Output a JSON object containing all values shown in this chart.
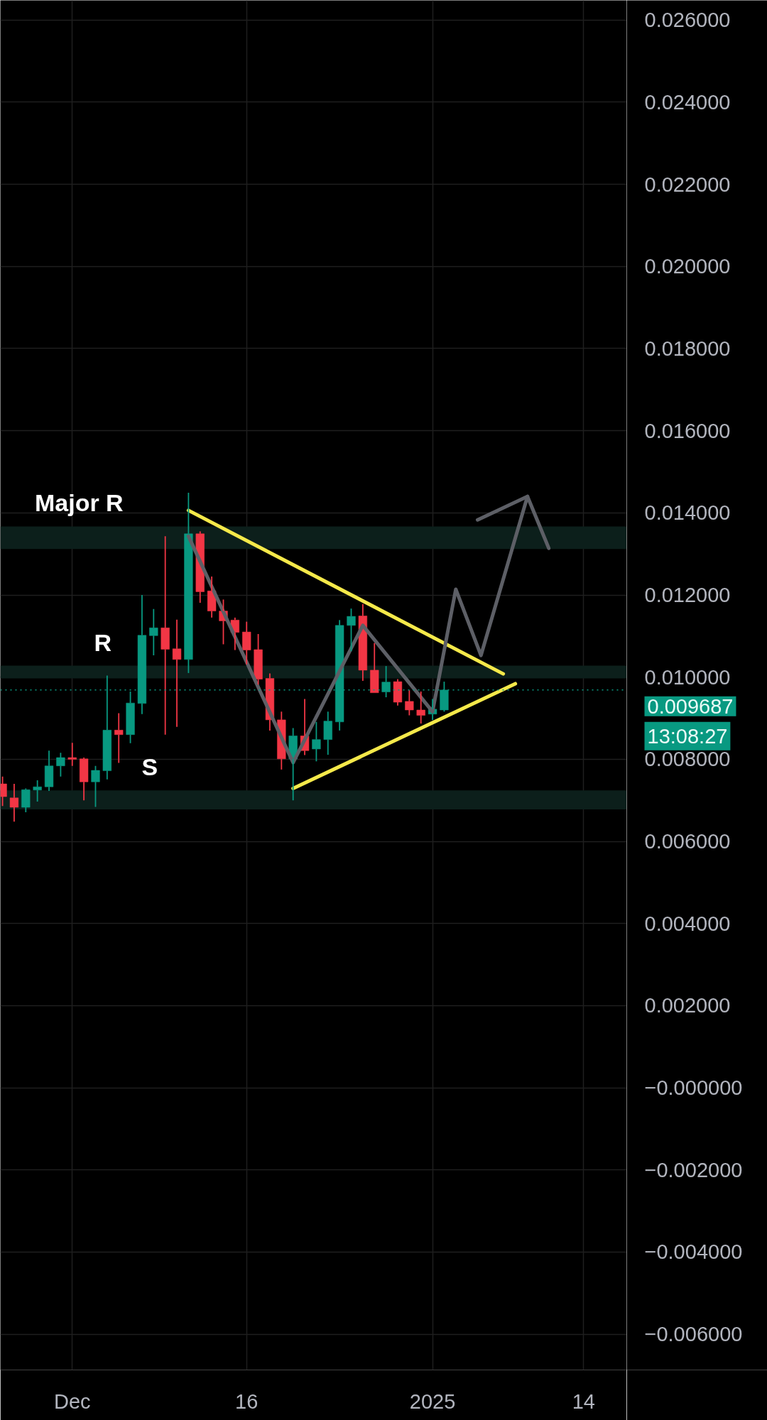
{
  "chart_data": {
    "type": "candlestick",
    "x": [
      "2024-11-25",
      "2024-11-26",
      "2024-11-27",
      "2024-11-28",
      "2024-11-29",
      "2024-11-30",
      "2024-12-01",
      "2024-12-02",
      "2024-12-03",
      "2024-12-04",
      "2024-12-05",
      "2024-12-06",
      "2024-12-07",
      "2024-12-08",
      "2024-12-09",
      "2024-12-10",
      "2024-12-11",
      "2024-12-12",
      "2024-12-13",
      "2024-12-14",
      "2024-12-15",
      "2024-12-16",
      "2024-12-17",
      "2024-12-18",
      "2024-12-19",
      "2024-12-20",
      "2024-12-21",
      "2024-12-22",
      "2024-12-23",
      "2024-12-24",
      "2024-12-25",
      "2024-12-26",
      "2024-12-27",
      "2024-12-28",
      "2024-12-29",
      "2024-12-30",
      "2024-12-31",
      "2025-01-01",
      "2025-01-02"
    ],
    "ohlc": [
      [
        0.0074,
        0.00758,
        0.00686,
        0.00709
      ],
      [
        0.00706,
        0.0074,
        0.00648,
        0.00683
      ],
      [
        0.00683,
        0.00729,
        0.00671,
        0.00726
      ],
      [
        0.00725,
        0.00749,
        0.00697,
        0.00733
      ],
      [
        0.00733,
        0.00821,
        0.00723,
        0.00784
      ],
      [
        0.00784,
        0.00816,
        0.00758,
        0.00804
      ],
      [
        0.00804,
        0.0084,
        0.00784,
        0.008
      ],
      [
        0.00801,
        0.00804,
        0.007,
        0.00745
      ],
      [
        0.00745,
        0.00784,
        0.00684,
        0.00773
      ],
      [
        0.00772,
        0.01004,
        0.00751,
        0.00871
      ],
      [
        0.00871,
        0.00912,
        0.00791,
        0.0086
      ],
      [
        0.0086,
        0.00965,
        0.00839,
        0.00937
      ],
      [
        0.00936,
        0.012,
        0.0091,
        0.01102
      ],
      [
        0.01101,
        0.01166,
        0.01053,
        0.0112
      ],
      [
        0.0112,
        0.01343,
        0.0086,
        0.01068
      ],
      [
        0.01069,
        0.0114,
        0.00879,
        0.01043
      ],
      [
        0.01043,
        0.01449,
        0.0101,
        0.01349
      ],
      [
        0.01349,
        0.01355,
        0.01181,
        0.01208
      ],
      [
        0.0121,
        0.01245,
        0.01145,
        0.01161
      ],
      [
        0.01161,
        0.01189,
        0.0108,
        0.01137
      ],
      [
        0.01139,
        0.01145,
        0.01066,
        0.01109
      ],
      [
        0.0111,
        0.01135,
        0.01031,
        0.01066
      ],
      [
        0.01067,
        0.01105,
        0.00982,
        0.00995
      ],
      [
        0.00997,
        0.01009,
        0.0087,
        0.00896
      ],
      [
        0.00896,
        0.00916,
        0.00775,
        0.00801
      ],
      [
        0.00801,
        0.00876,
        0.007,
        0.00857
      ],
      [
        0.00857,
        0.00947,
        0.0081,
        0.00821
      ],
      [
        0.00825,
        0.00891,
        0.00795,
        0.00848
      ],
      [
        0.00848,
        0.00916,
        0.00811,
        0.00893
      ],
      [
        0.00891,
        0.01139,
        0.0087,
        0.01126
      ],
      [
        0.01126,
        0.01167,
        0.01063,
        0.01148
      ],
      [
        0.01149,
        0.01178,
        0.00991,
        0.01017
      ],
      [
        0.01017,
        0.01083,
        0.00962,
        0.00962
      ],
      [
        0.00964,
        0.01027,
        0.00951,
        0.00988
      ],
      [
        0.00989,
        0.00995,
        0.00931,
        0.00939
      ],
      [
        0.00941,
        0.00968,
        0.00907,
        0.0092
      ],
      [
        0.0092,
        0.00965,
        0.00887,
        0.00907
      ],
      [
        0.0091,
        0.00947,
        0.00896,
        0.00922
      ],
      [
        0.0092,
        0.00989,
        0.00916,
        0.009687
      ]
    ],
    "colors": [
      "#f23645",
      "#f23645",
      "#089981",
      "#089981",
      "#089981",
      "#089981",
      "#f23645",
      "#f23645",
      "#089981",
      "#089981",
      "#f23645",
      "#089981",
      "#089981",
      "#089981",
      "#f23645",
      "#f23645",
      "#089981",
      "#f23645",
      "#f23645",
      "#f23645",
      "#f23645",
      "#f23645",
      "#f23645",
      "#f23645",
      "#f23645",
      "#089981",
      "#f23645",
      "#089981",
      "#089981",
      "#089981",
      "#089981",
      "#f23645",
      "#f23645",
      "#089981",
      "#f23645",
      "#f23645",
      "#f23645",
      "#089981",
      "#089981"
    ],
    "series": [
      {
        "type": "line",
        "color": "#f5e94a",
        "x": [
          "2024-12-11",
          "2025-01-07T02:00"
        ],
        "values": [
          0.01406,
          0.01008
        ]
      },
      {
        "type": "line",
        "color": "#f5e94a",
        "x": [
          "2024-12-20",
          "2025-01-08T03:00"
        ],
        "values": [
          0.00729,
          0.00984
        ]
      },
      {
        "type": "line",
        "color": "#5d5f66",
        "x": [
          "2024-12-11",
          "2024-12-20",
          "2024-12-26",
          "2025-01-01",
          "2025-01-03",
          "2025-01-05T04:00",
          "2025-01-09T04:00"
        ],
        "values": [
          0.01343,
          0.00792,
          0.01126,
          0.00916,
          0.01214,
          0.01053,
          0.0144
        ]
      },
      {
        "type": "line",
        "color": "#5d5f66",
        "x": [
          "2025-01-04T21:00",
          "2025-01-09T04:00",
          "2025-01-11"
        ],
        "values": [
          0.01383,
          0.0144,
          0.01314
        ]
      }
    ],
    "xlim": [
      "2024-11-24T19:30",
      "2025-01-17T17:00"
    ],
    "ylim": [
      -0.00687,
      0.02648
    ],
    "xticks": [
      {
        "value": "2024-12-01",
        "label": "Dec"
      },
      {
        "value": "2024-12-16",
        "label": "16"
      },
      {
        "value": "2025-01-01",
        "label": "2025"
      },
      {
        "value": "2025-01-14",
        "label": "14"
      }
    ],
    "yticks": [
      {
        "value": 0.026,
        "label": "0.026000"
      },
      {
        "value": 0.024,
        "label": "0.024000"
      },
      {
        "value": 0.022,
        "label": "0.022000"
      },
      {
        "value": 0.02,
        "label": "0.020000"
      },
      {
        "value": 0.018,
        "label": "0.018000"
      },
      {
        "value": 0.016,
        "label": "0.016000"
      },
      {
        "value": 0.014,
        "label": "0.014000"
      },
      {
        "value": 0.012,
        "label": "0.012000"
      },
      {
        "value": 0.01,
        "label": "0.010000"
      },
      {
        "value": 0.008,
        "label": "0.008000"
      },
      {
        "value": 0.006,
        "label": "0.006000"
      },
      {
        "value": 0.004,
        "label": "0.004000"
      },
      {
        "value": 0.002,
        "label": "0.002000"
      },
      {
        "value": 0,
        "label": "−0.000000"
      },
      {
        "value": -0.002,
        "label": "−0.002000"
      },
      {
        "value": -0.004,
        "label": "−0.004000"
      },
      {
        "value": -0.006,
        "label": "−0.006000"
      }
    ],
    "grid": true,
    "bands": [
      {
        "axis": "y",
        "from": 0.01312,
        "to": 0.01367,
        "color": "#0c1f1b"
      },
      {
        "axis": "y",
        "from": 0.00997,
        "to": 0.01028,
        "color": "#0c1f1b"
      },
      {
        "axis": "y",
        "from": 0.00678,
        "to": 0.00724,
        "color": "#0c1f1b"
      }
    ],
    "ref_lines": [
      {
        "axis": "y",
        "value": 0.009687,
        "label": "0.009687",
        "color": "#089981",
        "line_style": "dotted"
      }
    ],
    "annotations": [
      {
        "text": "Major R",
        "x": "2024-12-01T14:00",
        "y": 0.01367
      },
      {
        "text": "R",
        "x": "2024-12-03T15:00",
        "y": 0.01028
      },
      {
        "text": "S",
        "x": "2024-12-07T16:00",
        "y": 0.00724
      },
      "13:08:27"
    ]
  }
}
